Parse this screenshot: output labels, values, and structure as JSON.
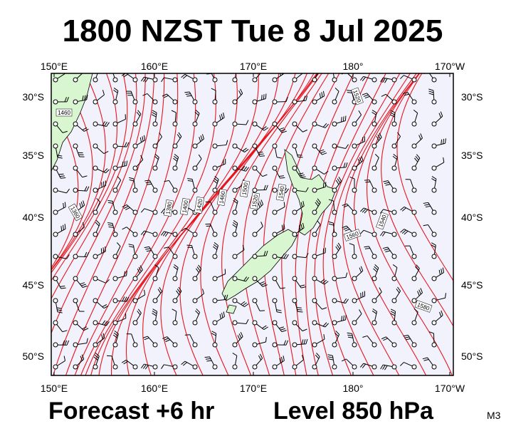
{
  "title": "1800 NZST Tue 8 Jul 2025",
  "lon_labels_top": [
    "150°E",
    "160°E",
    "170°E",
    "180°",
    "170°W"
  ],
  "lon_labels_bottom": [
    "150°E",
    "160°E",
    "170°E",
    "180°",
    "170°W"
  ],
  "lat_labels_left": [
    "30°S",
    "35°S",
    "40°S",
    "45°S",
    "50°S"
  ],
  "lat_labels_right": [
    "30°S",
    "35°S",
    "40°S",
    "45°S",
    "50°S"
  ],
  "contour_labels": [
    "1460",
    "1520",
    "1380",
    "1400",
    "1420",
    "1460",
    "1500",
    "1520",
    "1540",
    "1560",
    "1540",
    "1580",
    "1360"
  ],
  "footer": {
    "forecast": "Forecast +6 hr",
    "level": "Level 850 hPa",
    "model": "M3"
  }
}
